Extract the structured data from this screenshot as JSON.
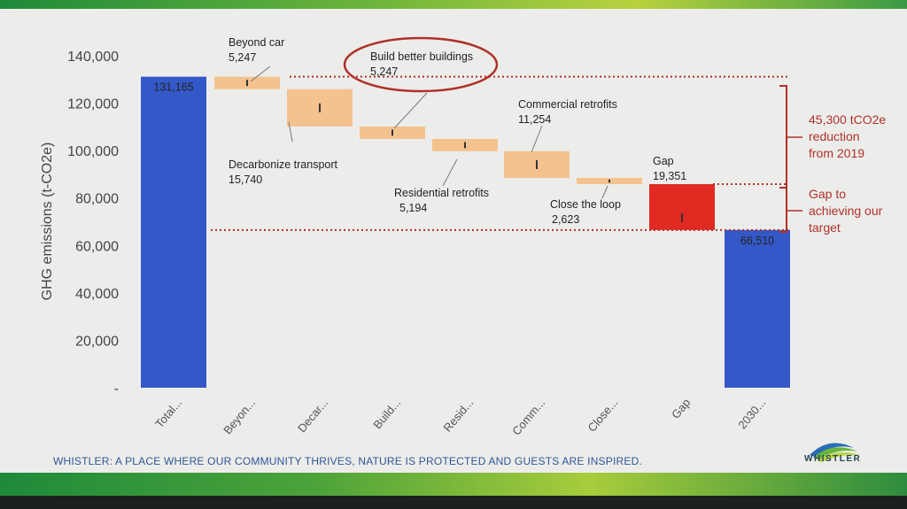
{
  "chart_data": {
    "type": "waterfall",
    "ylabel": "GHG emissions (t-CO2e)",
    "ylim": [
      0,
      140000
    ],
    "yticks": [
      "-",
      "20,000",
      "40,000",
      "60,000",
      "80,000",
      "100,000",
      "120,000",
      "140,000"
    ],
    "categories": [
      "Total...",
      "Beyon...",
      "Decar...",
      "Build...",
      "Resid...",
      "Comm...",
      "Close...",
      "Gap",
      "2030..."
    ],
    "bars": [
      {
        "kind": "total",
        "start": 0,
        "end": 131165,
        "label": "131,165",
        "color": "#3558c8"
      },
      {
        "kind": "decrease",
        "start": 131165,
        "end": 125918,
        "title": "Beyond car",
        "value": "5,247",
        "color": "#f4c28f"
      },
      {
        "kind": "decrease",
        "start": 125918,
        "end": 110178,
        "title": "Decarbonize transport",
        "value": "15,740",
        "color": "#f4c28f"
      },
      {
        "kind": "decrease",
        "start": 110178,
        "end": 104931,
        "title": "Build better buildings",
        "value": "5,247",
        "color": "#f4c28f"
      },
      {
        "kind": "decrease",
        "start": 104931,
        "end": 99737,
        "title": "Residential retrofits",
        "value": "5,194",
        "color": "#f4c28f"
      },
      {
        "kind": "decrease",
        "start": 99737,
        "end": 88483,
        "title": "Commercial retrofits",
        "value": "11,254",
        "color": "#f4c28f"
      },
      {
        "kind": "decrease",
        "start": 88483,
        "end": 85860,
        "title": "Close the loop",
        "value": "2,623",
        "color": "#f4c28f"
      },
      {
        "kind": "gap",
        "start": 85860,
        "end": 66510,
        "title": "Gap",
        "value": "19,351",
        "color": "#e02a22"
      },
      {
        "kind": "total",
        "start": 0,
        "end": 66510,
        "label": "66,510",
        "color": "#3558c8"
      }
    ],
    "reference_lines": [
      131165,
      85860,
      66510
    ],
    "notes": {
      "reduction": [
        "45,300 tCO2e",
        "reduction",
        "from 2019"
      ],
      "gap": [
        "Gap to",
        "achieving our",
        "target"
      ]
    },
    "highlight": "Build better buildings"
  },
  "footer": "WHISTLER: A PLACE WHERE OUR COMMUNITY THRIVES, NATURE IS PROTECTED AND GUESTS ARE INSPIRED.",
  "logo_text": "WHISTLER",
  "colors": {
    "total": "#3558c8",
    "decrease": "#f4c28f",
    "gap": "#e02a22",
    "accent": "#b0302a"
  }
}
